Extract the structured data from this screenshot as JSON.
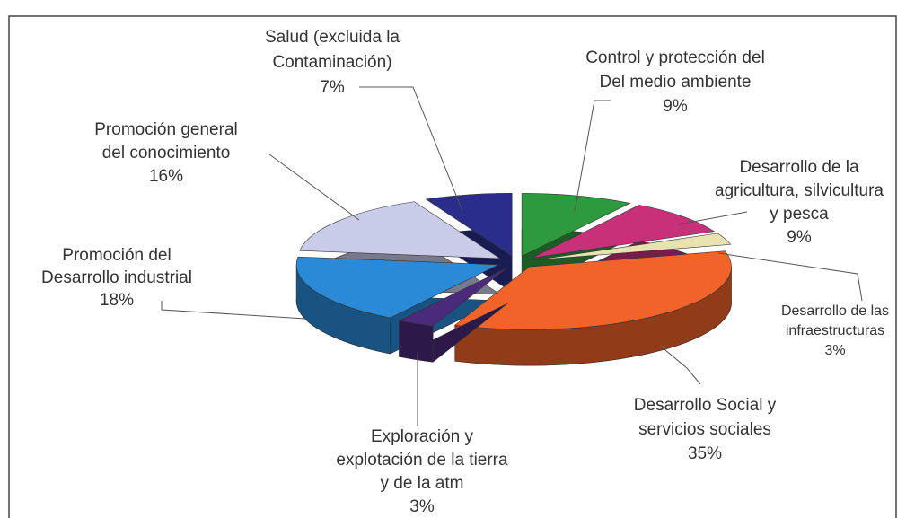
{
  "chart_data": {
    "type": "pie",
    "categories": [
      [
        "Control y protección del",
        "Del medio ambiente"
      ],
      [
        "Desarrollo de la",
        "agricultura, silvicultura",
        "y pesca"
      ],
      [
        "Desarrollo de las",
        "infraestructuras"
      ],
      [
        "Desarrollo Social y",
        "servicios sociales"
      ],
      [
        "Exploración y",
        "explotación de la tierra",
        "y de la atm"
      ],
      [
        "Promoción del",
        "Desarrollo industrial"
      ],
      [
        "Promoción general",
        "del conocimiento"
      ],
      [
        "Salud (excluida la",
        "Contaminación)"
      ]
    ],
    "values": [
      9,
      9,
      3,
      35,
      3,
      18,
      16,
      7
    ],
    "value_labels": [
      "9%",
      "9%",
      "3%",
      "35%",
      "3%",
      "18%",
      "16%",
      "7%"
    ],
    "colors": [
      "#2e9a3e",
      "#c8307a",
      "#e8e2b0",
      "#f2632a",
      "#4a2a7a",
      "#2a8ad8",
      "#c8cce8",
      "#2a2e8a"
    ]
  }
}
